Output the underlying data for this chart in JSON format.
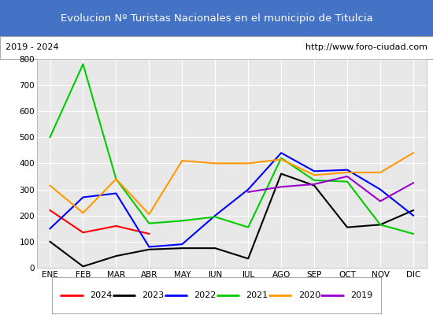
{
  "title": "Evolucion Nº Turistas Nacionales en el municipio de Titulcia",
  "subtitle_left": "2019 - 2024",
  "subtitle_right": "http://www.foro-ciudad.com",
  "months": [
    "ENE",
    "FEB",
    "MAR",
    "ABR",
    "MAY",
    "JUN",
    "JUL",
    "AGO",
    "SEP",
    "OCT",
    "NOV",
    "DIC"
  ],
  "series": {
    "2024": [
      220,
      135,
      160,
      130,
      null,
      null,
      null,
      null,
      null,
      null,
      null,
      null
    ],
    "2023": [
      100,
      5,
      45,
      70,
      75,
      75,
      35,
      360,
      315,
      155,
      165,
      220
    ],
    "2022": [
      150,
      270,
      285,
      80,
      90,
      200,
      300,
      440,
      370,
      375,
      300,
      200
    ],
    "2021": [
      500,
      780,
      340,
      170,
      180,
      195,
      155,
      420,
      335,
      330,
      165,
      130
    ],
    "2020": [
      315,
      210,
      340,
      205,
      410,
      400,
      400,
      415,
      355,
      365,
      365,
      440
    ],
    "2019": [
      null,
      null,
      null,
      null,
      null,
      null,
      290,
      310,
      320,
      350,
      255,
      325
    ]
  },
  "colors": {
    "2024": "#ff0000",
    "2023": "#000000",
    "2022": "#0000ff",
    "2021": "#00cc00",
    "2020": "#ff9900",
    "2019": "#9900cc"
  },
  "ylim": [
    0,
    800
  ],
  "yticks": [
    0,
    100,
    200,
    300,
    400,
    500,
    600,
    700,
    800
  ],
  "title_bg": "#4472c4",
  "title_color": "#ffffff",
  "subtitle_bg": "#ffffff",
  "plot_bg": "#e8e8e8",
  "grid_color": "#ffffff",
  "border_color": "#aaaaaa",
  "fig_bg": "#ffffff"
}
